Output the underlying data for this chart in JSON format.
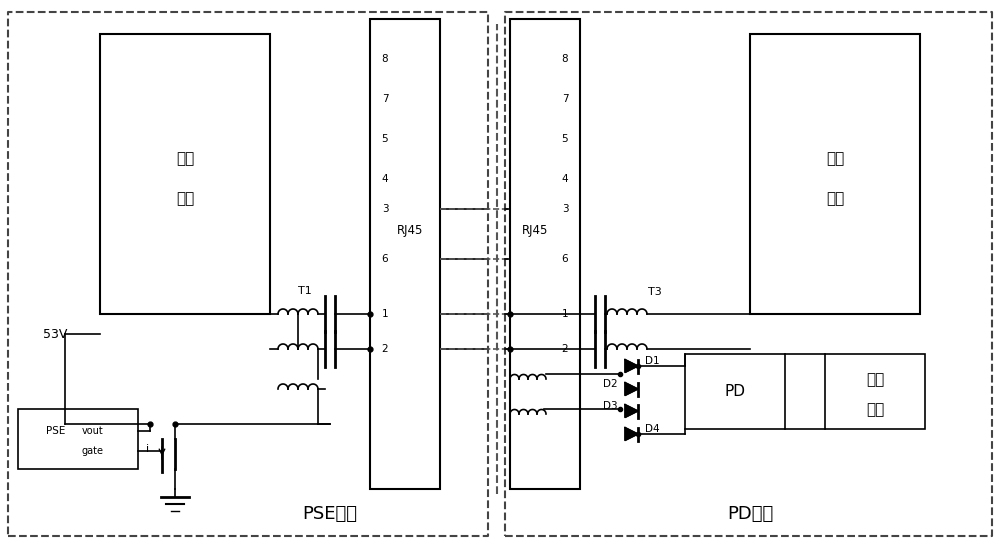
{
  "bg_color": "#ffffff",
  "line_color": "#000000",
  "dashed_color": "#555555",
  "title": "",
  "pse_label": "PSE设备",
  "pd_label": "PD设备",
  "rj45_label": "RJ45",
  "jiekou_label1": "接口",
  "jiekou_label2": "模块",
  "t1_label": "T1",
  "t3_label": "T3",
  "pse_chip_label1": "PSE",
  "pse_chip_label2": "vout",
  "pse_chip_label3": "gate",
  "v53_label": "53V",
  "i_label": "i",
  "pd_box_label": "PD",
  "sys_label1": "系统",
  "sys_label2": "负载",
  "d1_label": "D1",
  "d2_label": "D2",
  "d3_label": "D3",
  "d4_label": "D4",
  "rj45_pins_left": [
    "8",
    "7",
    "5",
    "4",
    "3",
    "6",
    "1",
    "2"
  ],
  "rj45_pins_right": [
    "8",
    "7",
    "5",
    "4",
    "3",
    "6",
    "1",
    "2"
  ]
}
